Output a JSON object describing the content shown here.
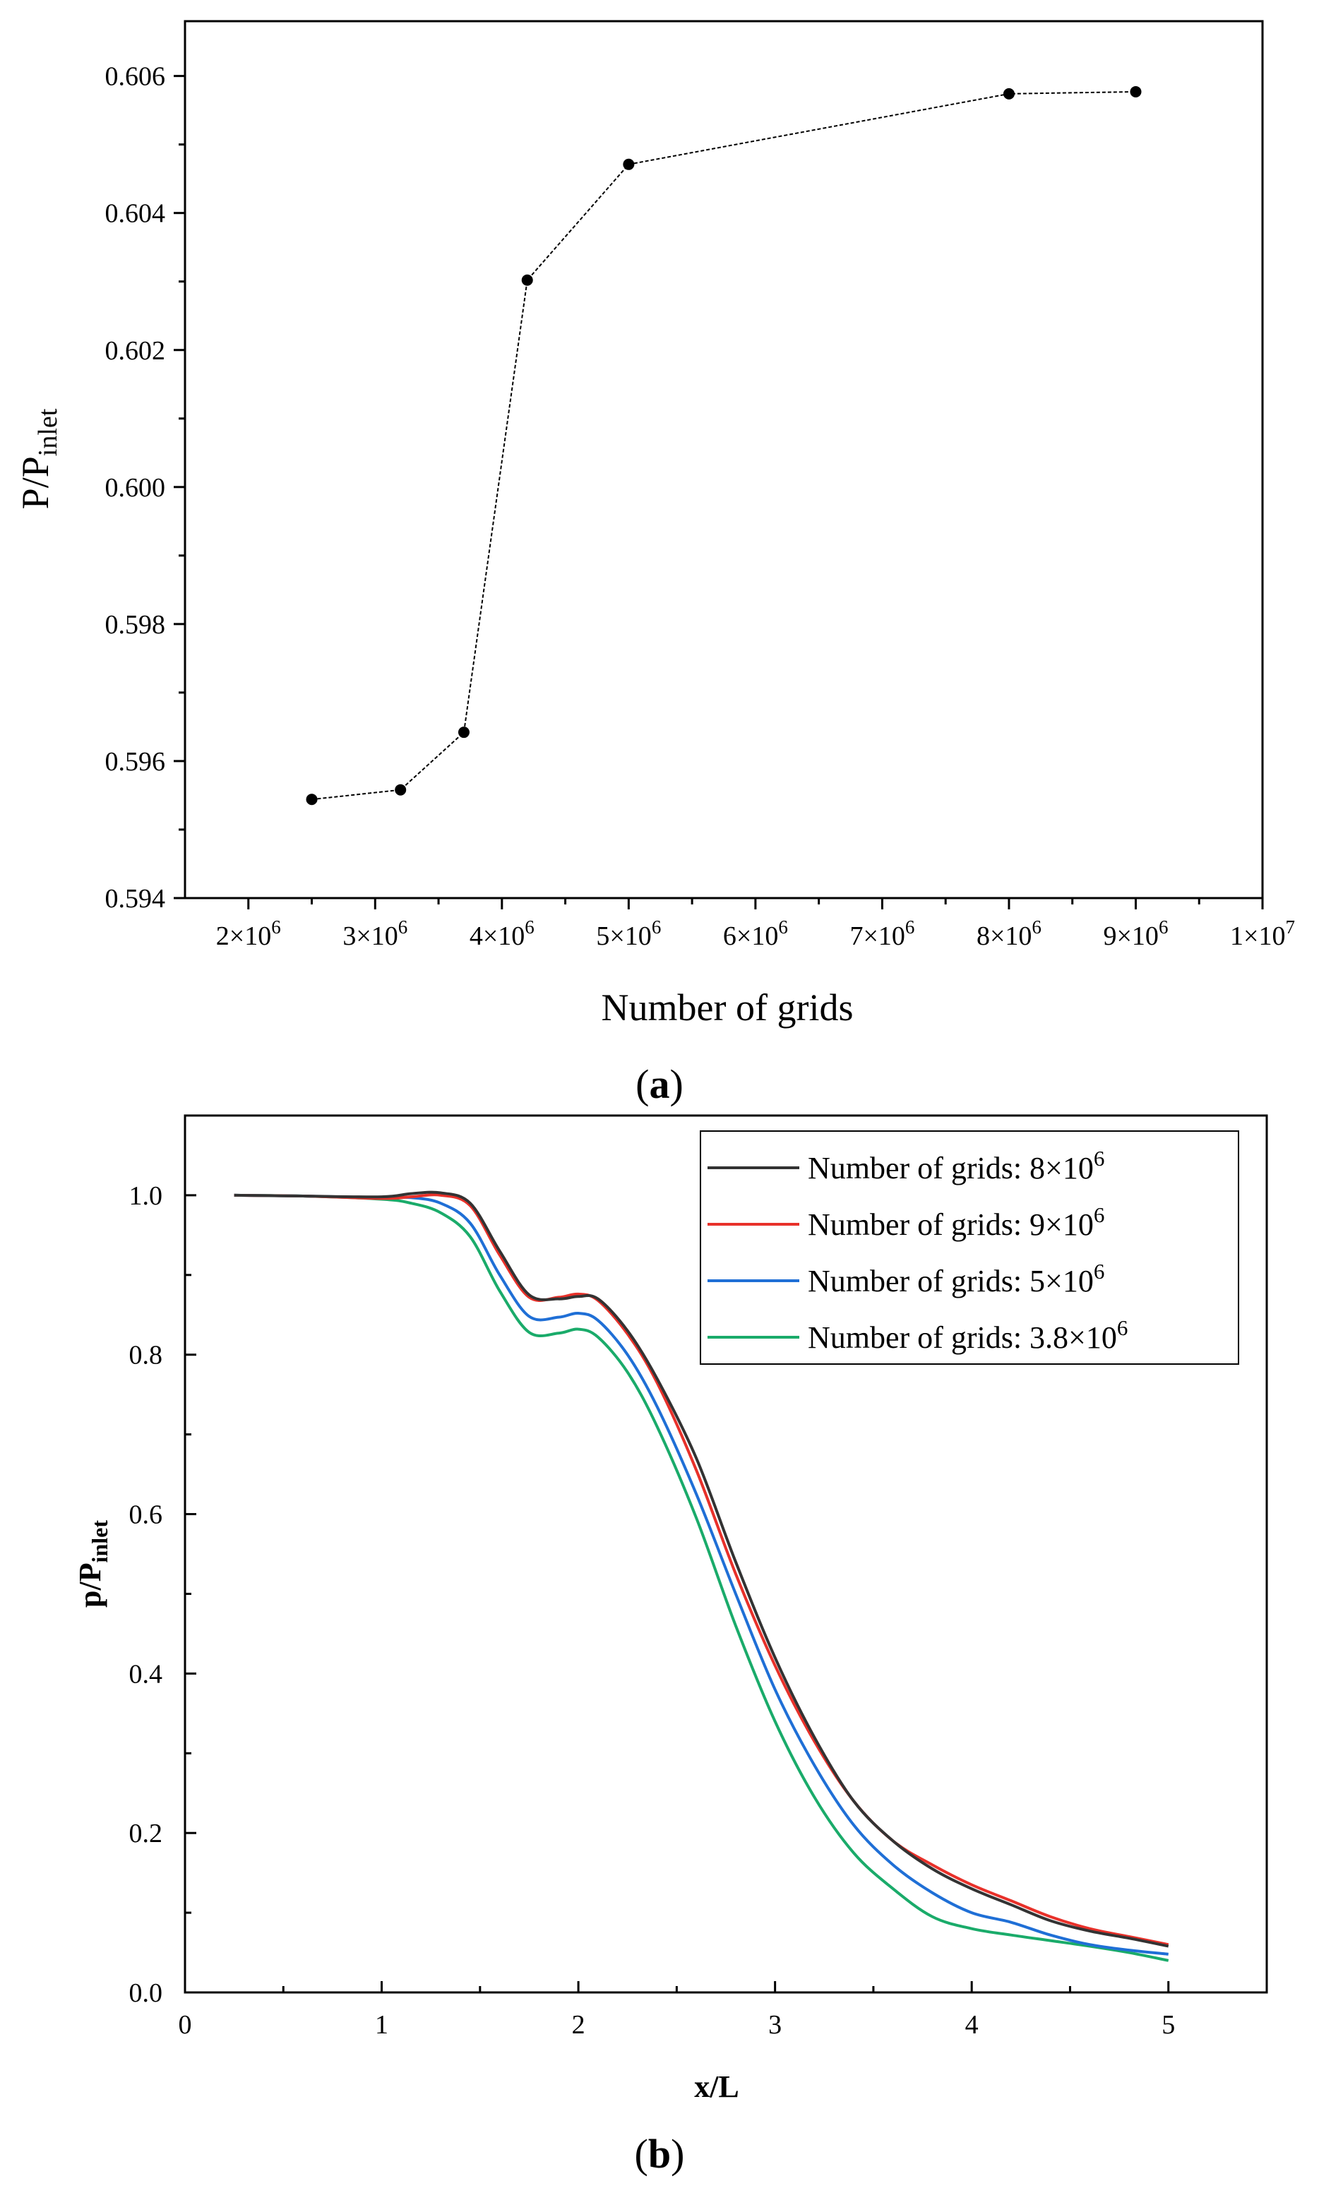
{
  "chart_data": [
    {
      "type": "line",
      "panel_label": "a",
      "xlabel": "Number of grids",
      "ylabel": "P/P",
      "ylabel_sub": "inlet",
      "xlim": [
        1500000,
        10000000
      ],
      "ylim": [
        0.594,
        0.6068
      ],
      "x_ticks": [
        {
          "value": 2000000,
          "mant": "2×10",
          "exp": "6"
        },
        {
          "value": 3000000,
          "mant": "3×10",
          "exp": "6"
        },
        {
          "value": 4000000,
          "mant": "4×10",
          "exp": "6"
        },
        {
          "value": 5000000,
          "mant": "5×10",
          "exp": "6"
        },
        {
          "value": 6000000,
          "mant": "6×10",
          "exp": "6"
        },
        {
          "value": 7000000,
          "mant": "7×10",
          "exp": "6"
        },
        {
          "value": 8000000,
          "mant": "8×10",
          "exp": "6"
        },
        {
          "value": 9000000,
          "mant": "9×10",
          "exp": "6"
        },
        {
          "value": 10000000,
          "mant": "1×10",
          "exp": "7"
        }
      ],
      "y_ticks": [
        "0.594",
        "0.596",
        "0.598",
        "0.600",
        "0.602",
        "0.604",
        "0.606"
      ],
      "series": [
        {
          "name": "P/Pinlet",
          "color": "#000000",
          "x": [
            2500000,
            3200000,
            3700000,
            4200000,
            5000000,
            8000000,
            9000000
          ],
          "y": [
            0.59544,
            0.59558,
            0.59642,
            0.60302,
            0.60471,
            0.60574,
            0.60577
          ]
        }
      ]
    },
    {
      "type": "line",
      "panel_label": "b",
      "xlabel": "x/L",
      "ylabel": "p/P",
      "ylabel_sub": "inlet",
      "xlim": [
        0,
        5.5
      ],
      "ylim": [
        0,
        1.1
      ],
      "x_ticks": [
        "0",
        "1",
        "2",
        "3",
        "4",
        "5"
      ],
      "y_ticks": [
        "0.0",
        "0.2",
        "0.4",
        "0.6",
        "0.8",
        "1.0"
      ],
      "legend_position": "top-right",
      "series": [
        {
          "name": "Number of grids: 8×10",
          "name_exp": "6",
          "color": "#333333",
          "x": [
            0.25,
            0.6,
            1.0,
            1.15,
            1.3,
            1.45,
            1.6,
            1.75,
            1.9,
            2.0,
            2.1,
            2.25,
            2.4,
            2.6,
            2.8,
            3.0,
            3.2,
            3.4,
            3.6,
            3.8,
            4.0,
            4.2,
            4.4,
            4.6,
            4.8,
            5.0
          ],
          "y": [
            1.0,
            0.999,
            0.998,
            1.002,
            1.003,
            0.99,
            0.93,
            0.875,
            0.87,
            0.873,
            0.87,
            0.83,
            0.77,
            0.67,
            0.54,
            0.42,
            0.32,
            0.24,
            0.19,
            0.155,
            0.13,
            0.11,
            0.09,
            0.077,
            0.068,
            0.058
          ]
        },
        {
          "name": "Number of grids: 9×10",
          "name_exp": "6",
          "color": "#e8312a",
          "x": [
            0.25,
            0.6,
            1.0,
            1.15,
            1.3,
            1.45,
            1.6,
            1.75,
            1.9,
            2.0,
            2.1,
            2.25,
            2.4,
            2.6,
            2.8,
            3.0,
            3.2,
            3.4,
            3.6,
            3.8,
            4.0,
            4.2,
            4.4,
            4.6,
            4.8,
            5.0
          ],
          "y": [
            1.0,
            0.999,
            0.996,
            0.998,
            1.0,
            0.987,
            0.925,
            0.872,
            0.872,
            0.876,
            0.868,
            0.826,
            0.765,
            0.655,
            0.525,
            0.41,
            0.315,
            0.24,
            0.19,
            0.16,
            0.135,
            0.115,
            0.095,
            0.08,
            0.07,
            0.06
          ]
        },
        {
          "name": "Number of grids: 5×10",
          "name_exp": "6",
          "color": "#1f6fd6",
          "x": [
            0.25,
            0.6,
            1.0,
            1.15,
            1.3,
            1.45,
            1.6,
            1.75,
            1.9,
            2.0,
            2.1,
            2.25,
            2.4,
            2.6,
            2.8,
            3.0,
            3.2,
            3.4,
            3.6,
            3.8,
            4.0,
            4.2,
            4.4,
            4.6,
            4.8,
            5.0
          ],
          "y": [
            1.0,
            0.999,
            0.997,
            0.997,
            0.99,
            0.965,
            0.9,
            0.848,
            0.847,
            0.852,
            0.843,
            0.8,
            0.735,
            0.625,
            0.5,
            0.38,
            0.285,
            0.21,
            0.16,
            0.125,
            0.1,
            0.088,
            0.072,
            0.06,
            0.053,
            0.048
          ]
        },
        {
          "name": "Number of grids: 3.8×10",
          "name_exp": "6",
          "color": "#1aab6a",
          "x": [
            0.25,
            0.6,
            1.0,
            1.15,
            1.3,
            1.45,
            1.6,
            1.75,
            1.9,
            2.0,
            2.1,
            2.25,
            2.4,
            2.6,
            2.8,
            3.0,
            3.2,
            3.4,
            3.6,
            3.8,
            4.0,
            4.2,
            4.4,
            4.6,
            4.8,
            5.0
          ],
          "y": [
            1.0,
            0.999,
            0.995,
            0.99,
            0.978,
            0.948,
            0.88,
            0.828,
            0.827,
            0.832,
            0.822,
            0.778,
            0.71,
            0.595,
            0.46,
            0.34,
            0.245,
            0.175,
            0.13,
            0.095,
            0.08,
            0.072,
            0.065,
            0.058,
            0.05,
            0.04
          ]
        }
      ]
    }
  ]
}
